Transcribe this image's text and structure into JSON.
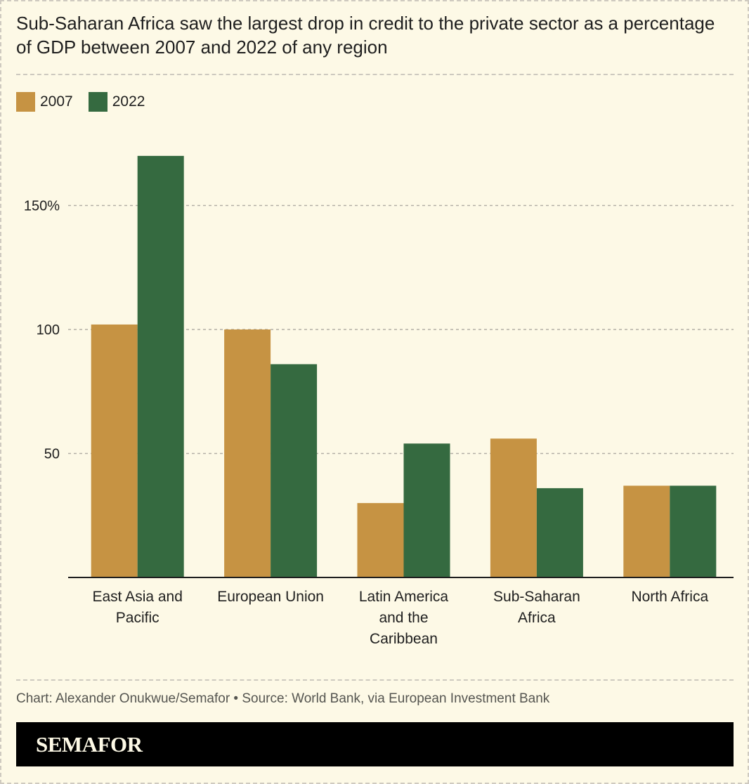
{
  "title": "Sub-Saharan Africa saw the largest drop in credit to the private sector as a percentage of GDP between 2007 and 2022 of any region",
  "legend": [
    {
      "label": "2007",
      "color": "#c69343"
    },
    {
      "label": "2022",
      "color": "#356a40"
    }
  ],
  "source": "Chart: Alexander Onukwue/Semafor • Source: World Bank, via European Investment Bank",
  "footer": {
    "logo": "SEMAFOR"
  },
  "chart_data": {
    "type": "bar",
    "title": "Sub-Saharan Africa saw the largest drop in credit to the private sector as a percentage of GDP between 2007 and 2022 of any region",
    "xlabel": "",
    "ylabel": "",
    "categories": [
      [
        "East Asia and",
        "Pacific"
      ],
      [
        "European Union"
      ],
      [
        "Latin America",
        "and the",
        "Caribbean"
      ],
      [
        "Sub-Saharan",
        "Africa"
      ],
      [
        "North Africa"
      ]
    ],
    "series": [
      {
        "name": "2007",
        "color": "#c69343",
        "values": [
          102,
          100,
          30,
          56,
          37
        ]
      },
      {
        "name": "2022",
        "color": "#356a40",
        "values": [
          170,
          86,
          54,
          36,
          37
        ]
      }
    ],
    "ylim": [
      0,
      180
    ],
    "yticks": [
      {
        "value": 50,
        "label": "50"
      },
      {
        "value": 100,
        "label": "100"
      },
      {
        "value": 150,
        "label": "150%"
      }
    ],
    "grid": true,
    "legend_position": "top-left"
  }
}
